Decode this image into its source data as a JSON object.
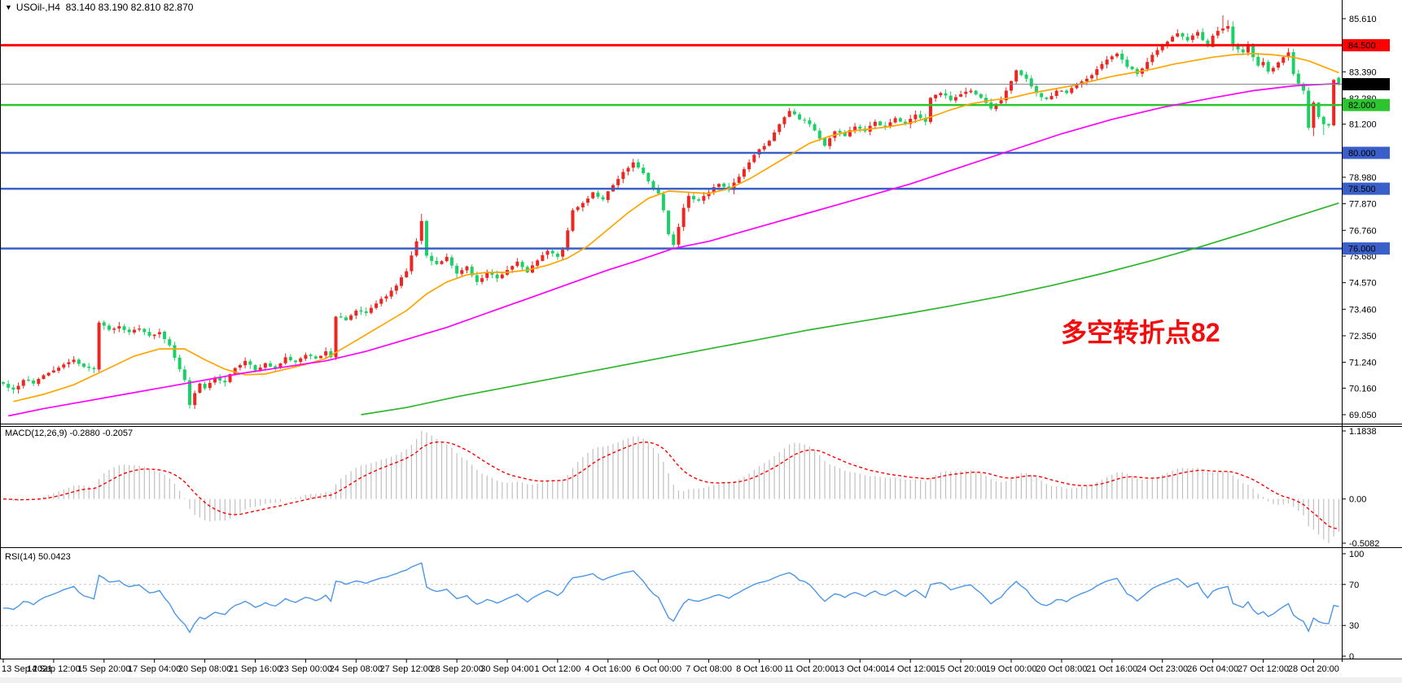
{
  "title": {
    "marker": "▼",
    "symbol_period": "USOil-,H4",
    "ohlc_readout": "83.140 83.190 82.810 82.870"
  },
  "colors": {
    "candle_up": "#ee2621",
    "candle_down": "#19d164",
    "ma_fast": "#ffa500",
    "ma_mid": "#ff00ff",
    "ma_slow": "#2db52d",
    "line_red": "#ff0000",
    "line_blue": "#3a5fc8",
    "line_green": "#2dc52d",
    "price_line": "#808080",
    "badge_black": "#000000",
    "macd_hist": "#c0c0c0",
    "macd_signal": "#ff0000",
    "rsi_line": "#4a96e8",
    "level_dash": "#c8c8c8",
    "annotation": "#f20c0c",
    "frame": "#000000",
    "bottom_strip": "#f0f0f0",
    "text": "#000000"
  },
  "price_axis": {
    "plain_ticks": [
      {
        "label": "85.610",
        "price": 85.61
      },
      {
        "label": "83.390",
        "price": 83.39
      },
      {
        "label": "82.280",
        "price": 82.28
      },
      {
        "label": "81.200",
        "price": 81.2
      },
      {
        "label": "78.980",
        "price": 78.98
      },
      {
        "label": "77.870",
        "price": 77.87
      },
      {
        "label": "76.760",
        "price": 76.76
      },
      {
        "label": "75.680",
        "price": 75.68
      },
      {
        "label": "74.570",
        "price": 74.57
      },
      {
        "label": "73.460",
        "price": 73.46
      },
      {
        "label": "72.350",
        "price": 72.35
      },
      {
        "label": "71.240",
        "price": 71.24
      },
      {
        "label": "70.160",
        "price": 70.16
      },
      {
        "label": "69.050",
        "price": 69.05
      }
    ]
  },
  "hlines": [
    {
      "label": "84.500",
      "price": 84.5,
      "color_key": "line_red",
      "width": 3
    },
    {
      "label": "82.000",
      "price": 82.0,
      "color_key": "line_green",
      "width": 2.5
    },
    {
      "label": "80.000",
      "price": 80.0,
      "color_key": "line_blue",
      "width": 2.5
    },
    {
      "label": "78.500",
      "price": 78.5,
      "color_key": "line_blue",
      "width": 2.5
    },
    {
      "label": "76.000",
      "price": 76.0,
      "color_key": "line_blue",
      "width": 2.5
    }
  ],
  "current_price": {
    "label": "82.870",
    "value": 82.87
  },
  "time_axis": {
    "labels": [
      "13 Sep 2021",
      "14 Sep 12:00",
      "15 Sep 20:00",
      "17 Sep 04:00",
      "20 Sep 08:00",
      "21 Sep 16:00",
      "23 Sep 00:00",
      "24 Sep 08:00",
      "27 Sep 12:00",
      "28 Sep 20:00",
      "30 Sep 04:00",
      "1 Oct 12:00",
      "4 Oct 16:00",
      "6 Oct 00:00",
      "7 Oct 08:00",
      "8 Oct 16:00",
      "11 Oct 20:00",
      "13 Oct 04:00",
      "14 Oct 12:00",
      "15 Oct 20:00",
      "19 Oct 00:00",
      "20 Oct 08:00",
      "21 Oct 16:00",
      "24 Oct 23:00",
      "26 Oct 04:00",
      "27 Oct 12:00",
      "28 Oct 20:00"
    ],
    "candles_per_label": 10
  },
  "macd_panel": {
    "label": "MACD(12,26,9) -0.2880 -0.2057",
    "axis_labels": [
      "1.1838",
      "0.00",
      "-0.5082"
    ],
    "params": [
      12,
      26,
      9
    ],
    "last_values": [
      -0.288,
      -0.2057
    ]
  },
  "rsi_panel": {
    "label": "RSI(14) 50.0423",
    "axis_labels": [
      "100",
      "70",
      "30",
      "0"
    ],
    "period": 14,
    "last_value": 50.0423,
    "levels": [
      70,
      30
    ]
  },
  "chart_data": {
    "type": "candlestick",
    "symbol": "USOil",
    "timeframe": "H4",
    "title": "USOil-,H4 83.140 83.190 82.810 82.870",
    "price_range_visible": [
      69.05,
      85.61
    ],
    "candle_count": 266,
    "up_means": "bullish shown red, bearish shown green (CN convention)",
    "last_candle": {
      "open": 83.14,
      "high": 83.19,
      "low": 82.81,
      "close": 82.87
    },
    "close_anchors": [
      [
        0,
        70.35
      ],
      [
        2,
        70.1
      ],
      [
        4,
        70.5
      ],
      [
        6,
        70.35
      ],
      [
        8,
        70.7
      ],
      [
        10,
        70.9
      ],
      [
        12,
        71.15
      ],
      [
        14,
        71.35
      ],
      [
        16,
        71.05
      ],
      [
        18,
        70.95
      ],
      [
        19,
        72.9
      ],
      [
        21,
        72.6
      ],
      [
        23,
        72.75
      ],
      [
        25,
        72.5
      ],
      [
        27,
        72.65
      ],
      [
        29,
        72.35
      ],
      [
        31,
        72.5
      ],
      [
        33,
        71.95
      ],
      [
        35,
        70.95
      ],
      [
        36,
        70.5
      ],
      [
        37,
        69.45
      ],
      [
        38,
        69.95
      ],
      [
        39,
        70.35
      ],
      [
        40,
        70.15
      ],
      [
        42,
        70.6
      ],
      [
        44,
        70.4
      ],
      [
        46,
        71.0
      ],
      [
        48,
        71.3
      ],
      [
        50,
        70.9
      ],
      [
        52,
        71.2
      ],
      [
        54,
        71.0
      ],
      [
        56,
        71.45
      ],
      [
        58,
        71.25
      ],
      [
        60,
        71.55
      ],
      [
        62,
        71.4
      ],
      [
        64,
        71.7
      ],
      [
        65,
        71.45
      ],
      [
        66,
        73.15
      ],
      [
        68,
        73.0
      ],
      [
        70,
        73.4
      ],
      [
        72,
        73.3
      ],
      [
        74,
        73.7
      ],
      [
        76,
        74.0
      ],
      [
        78,
        74.45
      ],
      [
        80,
        75.05
      ],
      [
        82,
        76.3
      ],
      [
        83,
        77.15
      ],
      [
        84,
        75.7
      ],
      [
        86,
        75.35
      ],
      [
        88,
        75.65
      ],
      [
        90,
        74.95
      ],
      [
        92,
        75.25
      ],
      [
        94,
        74.6
      ],
      [
        96,
        75.0
      ],
      [
        98,
        74.75
      ],
      [
        100,
        75.1
      ],
      [
        102,
        75.45
      ],
      [
        104,
        75.0
      ],
      [
        106,
        75.5
      ],
      [
        108,
        75.9
      ],
      [
        110,
        75.65
      ],
      [
        111,
        75.95
      ],
      [
        113,
        77.6
      ],
      [
        115,
        77.9
      ],
      [
        117,
        78.35
      ],
      [
        119,
        78.05
      ],
      [
        121,
        78.65
      ],
      [
        123,
        79.2
      ],
      [
        125,
        79.6
      ],
      [
        127,
        79.15
      ],
      [
        129,
        78.5
      ],
      [
        130,
        78.3
      ],
      [
        131,
        77.6
      ],
      [
        132,
        76.6
      ],
      [
        133,
        76.15
      ],
      [
        134,
        76.9
      ],
      [
        135,
        77.7
      ],
      [
        136,
        78.2
      ],
      [
        138,
        78.0
      ],
      [
        140,
        78.35
      ],
      [
        142,
        78.7
      ],
      [
        144,
        78.45
      ],
      [
        146,
        79.0
      ],
      [
        148,
        79.6
      ],
      [
        150,
        80.15
      ],
      [
        152,
        80.5
      ],
      [
        154,
        81.2
      ],
      [
        156,
        81.75
      ],
      [
        158,
        81.4
      ],
      [
        160,
        81.2
      ],
      [
        162,
        80.6
      ],
      [
        163,
        80.3
      ],
      [
        165,
        80.9
      ],
      [
        167,
        80.7
      ],
      [
        169,
        81.1
      ],
      [
        171,
        80.9
      ],
      [
        173,
        81.3
      ],
      [
        175,
        81.1
      ],
      [
        177,
        81.45
      ],
      [
        179,
        81.2
      ],
      [
        181,
        81.6
      ],
      [
        183,
        81.3
      ],
      [
        184,
        82.3
      ],
      [
        186,
        82.5
      ],
      [
        188,
        82.2
      ],
      [
        190,
        82.45
      ],
      [
        192,
        82.6
      ],
      [
        194,
        82.3
      ],
      [
        196,
        81.85
      ],
      [
        198,
        82.2
      ],
      [
        200,
        83.0
      ],
      [
        201,
        83.45
      ],
      [
        203,
        83.1
      ],
      [
        205,
        82.5
      ],
      [
        207,
        82.25
      ],
      [
        209,
        82.6
      ],
      [
        211,
        82.5
      ],
      [
        213,
        82.85
      ],
      [
        215,
        83.1
      ],
      [
        217,
        83.5
      ],
      [
        219,
        83.9
      ],
      [
        221,
        84.15
      ],
      [
        223,
        83.6
      ],
      [
        225,
        83.3
      ],
      [
        227,
        83.8
      ],
      [
        229,
        84.3
      ],
      [
        231,
        84.65
      ],
      [
        233,
        85.0
      ],
      [
        235,
        84.7
      ],
      [
        237,
        85.05
      ],
      [
        239,
        84.45
      ],
      [
        240,
        84.9
      ],
      [
        242,
        85.2
      ],
      [
        243,
        85.3
      ],
      [
        244,
        84.45
      ],
      [
        246,
        84.2
      ],
      [
        247,
        84.55
      ],
      [
        248,
        84.0
      ],
      [
        249,
        83.65
      ],
      [
        250,
        83.8
      ],
      [
        251,
        83.4
      ],
      [
        252,
        83.55
      ],
      [
        254,
        84.0
      ],
      [
        255,
        84.2
      ],
      [
        256,
        83.3
      ],
      [
        257,
        82.9
      ],
      [
        258,
        82.6
      ],
      [
        259,
        81.05
      ],
      [
        260,
        82.1
      ],
      [
        261,
        81.5
      ],
      [
        262,
        81.2
      ],
      [
        263,
        81.15
      ],
      [
        264,
        83.05
      ],
      [
        265,
        82.87
      ]
    ],
    "wick_overrides": {
      "37": {
        "low": 69.3
      },
      "83": {
        "high": 77.45
      },
      "242": {
        "high": 85.75
      },
      "243": {
        "high": 85.55
      },
      "244": {
        "high": 85.5
      },
      "259": {
        "low": 80.95
      },
      "260": {
        "low": 80.7
      },
      "262": {
        "low": 80.75
      }
    },
    "ma_lines": [
      {
        "name": "fast-ma-orange",
        "color_key": "ma_fast",
        "points": [
          [
            2,
            69.6
          ],
          [
            8,
            69.9
          ],
          [
            14,
            70.3
          ],
          [
            20,
            70.9
          ],
          [
            26,
            71.5
          ],
          [
            31,
            71.8
          ],
          [
            36,
            71.8
          ],
          [
            40,
            71.35
          ],
          [
            44,
            70.95
          ],
          [
            48,
            70.72
          ],
          [
            52,
            70.75
          ],
          [
            56,
            70.95
          ],
          [
            60,
            71.15
          ],
          [
            64,
            71.4
          ],
          [
            68,
            71.9
          ],
          [
            72,
            72.4
          ],
          [
            76,
            72.9
          ],
          [
            80,
            73.4
          ],
          [
            84,
            74.1
          ],
          [
            88,
            74.6
          ],
          [
            92,
            74.9
          ],
          [
            96,
            75.0
          ],
          [
            100,
            75.0
          ],
          [
            104,
            75.1
          ],
          [
            108,
            75.3
          ],
          [
            112,
            75.6
          ],
          [
            116,
            76.1
          ],
          [
            120,
            76.8
          ],
          [
            124,
            77.5
          ],
          [
            128,
            78.1
          ],
          [
            132,
            78.4
          ],
          [
            136,
            78.35
          ],
          [
            140,
            78.3
          ],
          [
            144,
            78.5
          ],
          [
            148,
            78.9
          ],
          [
            152,
            79.4
          ],
          [
            156,
            79.9
          ],
          [
            160,
            80.4
          ],
          [
            164,
            80.7
          ],
          [
            168,
            80.9
          ],
          [
            172,
            81.0
          ],
          [
            176,
            81.1
          ],
          [
            180,
            81.25
          ],
          [
            184,
            81.5
          ],
          [
            188,
            81.8
          ],
          [
            192,
            82.05
          ],
          [
            196,
            82.2
          ],
          [
            200,
            82.3
          ],
          [
            204,
            82.5
          ],
          [
            208,
            82.65
          ],
          [
            212,
            82.8
          ],
          [
            216,
            83.0
          ],
          [
            220,
            83.2
          ],
          [
            224,
            83.35
          ],
          [
            228,
            83.5
          ],
          [
            232,
            83.7
          ],
          [
            236,
            83.85
          ],
          [
            240,
            84.0
          ],
          [
            244,
            84.1
          ],
          [
            248,
            84.15
          ],
          [
            252,
            84.1
          ],
          [
            256,
            84.0
          ],
          [
            259,
            83.85
          ],
          [
            262,
            83.6
          ],
          [
            265,
            83.35
          ]
        ]
      },
      {
        "name": "mid-ma-magenta",
        "color_key": "ma_mid",
        "points": [
          [
            1,
            69.0
          ],
          [
            8,
            69.3
          ],
          [
            16,
            69.6
          ],
          [
            24,
            69.9
          ],
          [
            32,
            70.2
          ],
          [
            40,
            70.5
          ],
          [
            48,
            70.8
          ],
          [
            56,
            71.05
          ],
          [
            64,
            71.3
          ],
          [
            72,
            71.7
          ],
          [
            80,
            72.2
          ],
          [
            88,
            72.7
          ],
          [
            96,
            73.3
          ],
          [
            104,
            73.9
          ],
          [
            112,
            74.5
          ],
          [
            120,
            75.1
          ],
          [
            126,
            75.5
          ],
          [
            133,
            76.0
          ],
          [
            140,
            76.3
          ],
          [
            150,
            76.9
          ],
          [
            160,
            77.5
          ],
          [
            170,
            78.1
          ],
          [
            180,
            78.7
          ],
          [
            190,
            79.4
          ],
          [
            200,
            80.1
          ],
          [
            210,
            80.8
          ],
          [
            220,
            81.4
          ],
          [
            230,
            81.9
          ],
          [
            240,
            82.3
          ],
          [
            248,
            82.6
          ],
          [
            256,
            82.8
          ],
          [
            265,
            82.9
          ]
        ]
      },
      {
        "name": "slow-ma-green",
        "color_key": "ma_slow",
        "points": [
          [
            71,
            69.05
          ],
          [
            80,
            69.35
          ],
          [
            90,
            69.8
          ],
          [
            100,
            70.2
          ],
          [
            110,
            70.6
          ],
          [
            120,
            71.0
          ],
          [
            130,
            71.4
          ],
          [
            140,
            71.8
          ],
          [
            150,
            72.2
          ],
          [
            160,
            72.6
          ],
          [
            170,
            72.95
          ],
          [
            180,
            73.3
          ],
          [
            188,
            73.6
          ],
          [
            198,
            74.0
          ],
          [
            208,
            74.45
          ],
          [
            218,
            74.95
          ],
          [
            228,
            75.5
          ],
          [
            238,
            76.1
          ],
          [
            248,
            76.75
          ],
          [
            256,
            77.3
          ],
          [
            265,
            77.9
          ]
        ]
      }
    ],
    "annotation": {
      "text": "多空转折点82"
    }
  }
}
